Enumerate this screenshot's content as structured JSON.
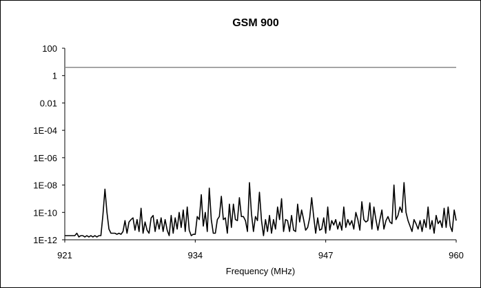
{
  "chart_data": {
    "type": "line",
    "title": "GSM 900",
    "xlabel": "Frequency (MHz)",
    "ylabel": "",
    "y_scale": "log",
    "xlim": [
      921,
      960
    ],
    "ylim": [
      1e-12,
      100
    ],
    "x_ticks": [
      921,
      934,
      947,
      960
    ],
    "x_tick_labels": [
      "921",
      "934",
      "947",
      "960"
    ],
    "y_ticks": [
      1e-12,
      1e-10,
      1e-08,
      1e-06,
      0.0001,
      0.01,
      1,
      100
    ],
    "y_tick_labels": [
      "1E-12",
      "1E-10",
      "1E-08",
      "1E-06",
      "1E-04",
      "0.01",
      "1",
      "100"
    ],
    "grid": false,
    "legend": "none",
    "series": [
      {
        "color": "#888888",
        "x": [
          921,
          960
        ],
        "y": [
          4,
          4
        ]
      },
      {
        "color": "#000000",
        "x": [
          921.0,
          921.2,
          921.4,
          921.6,
          921.8,
          922.0,
          922.2,
          922.4,
          922.6,
          922.8,
          923.0,
          923.2,
          923.4,
          923.6,
          923.8,
          924.0,
          924.2,
          924.4,
          924.6,
          924.8,
          925.0,
          925.2,
          925.4,
          925.6,
          925.8,
          926.0,
          926.2,
          926.4,
          926.6,
          926.8,
          927.0,
          927.2,
          927.4,
          927.6,
          927.8,
          928.0,
          928.2,
          928.4,
          928.6,
          928.8,
          929.0,
          929.2,
          929.4,
          929.6,
          929.8,
          930.0,
          930.2,
          930.4,
          930.6,
          930.8,
          931.0,
          931.2,
          931.4,
          931.6,
          931.8,
          932.0,
          932.2,
          932.4,
          932.6,
          932.8,
          933.0,
          933.2,
          933.4,
          933.6,
          933.8,
          934.0,
          934.2,
          934.4,
          934.6,
          934.8,
          935.0,
          935.2,
          935.4,
          935.6,
          935.8,
          936.0,
          936.2,
          936.4,
          936.6,
          936.8,
          937.0,
          937.2,
          937.4,
          937.6,
          937.8,
          938.0,
          938.2,
          938.4,
          938.6,
          938.8,
          939.0,
          939.2,
          939.4,
          939.6,
          939.8,
          940.0,
          940.2,
          940.4,
          940.6,
          940.8,
          941.0,
          941.2,
          941.4,
          941.6,
          941.8,
          942.0,
          942.2,
          942.4,
          942.6,
          942.8,
          943.0,
          943.2,
          943.4,
          943.6,
          943.8,
          944.0,
          944.2,
          944.4,
          944.6,
          944.8,
          945.0,
          945.2,
          945.4,
          945.6,
          945.8,
          946.0,
          946.2,
          946.4,
          946.6,
          946.8,
          947.0,
          947.2,
          947.4,
          947.6,
          947.8,
          948.0,
          948.2,
          948.4,
          948.6,
          948.8,
          949.0,
          949.2,
          949.4,
          949.6,
          949.8,
          950.0,
          950.2,
          950.4,
          950.6,
          950.8,
          951.0,
          951.2,
          951.4,
          951.6,
          951.8,
          952.0,
          952.2,
          952.4,
          952.6,
          952.8,
          953.0,
          953.2,
          953.4,
          953.6,
          953.8,
          954.0,
          954.2,
          954.4,
          954.6,
          954.8,
          955.0,
          955.2,
          955.4,
          955.6,
          955.8,
          956.0,
          956.2,
          956.4,
          956.6,
          956.8,
          957.0,
          957.2,
          957.4,
          957.6,
          957.8,
          958.0,
          958.2,
          958.4,
          958.6,
          958.8,
          959.0,
          959.2,
          959.4,
          959.6,
          959.8,
          960.0
        ],
        "y": [
          2e-12,
          2e-12,
          2e-12,
          2e-12,
          2e-12,
          2e-12,
          3e-12,
          1.6e-12,
          2e-12,
          2e-12,
          1.6e-12,
          2e-12,
          1.6e-12,
          2e-12,
          1.6e-12,
          2e-12,
          1.6e-12,
          2e-12,
          2e-12,
          6e-11,
          5e-09,
          1e-10,
          6e-12,
          3e-12,
          3e-12,
          3e-12,
          2.5e-12,
          3e-12,
          2.5e-12,
          4e-12,
          2.5e-11,
          3e-12,
          2e-11,
          3e-11,
          4e-11,
          5e-12,
          3e-11,
          4e-12,
          2e-10,
          3e-12,
          2e-11,
          5e-12,
          3e-12,
          4e-11,
          6e-11,
          4e-12,
          3e-11,
          6e-12,
          4e-11,
          4e-12,
          3e-11,
          5e-12,
          2e-12,
          6e-11,
          3e-12,
          4e-11,
          6e-12,
          1e-10,
          8e-12,
          1.5e-10,
          4e-12,
          2.5e-10,
          5e-12,
          2e-12,
          2.5e-12,
          2.5e-12,
          5e-11,
          3e-11,
          2e-09,
          1e-11,
          1e-10,
          4e-12,
          6e-09,
          3e-11,
          3e-12,
          3e-12,
          3e-11,
          5e-11,
          1.5e-09,
          3e-11,
          4e-11,
          3e-12,
          4e-10,
          8e-12,
          4e-10,
          3e-11,
          2.5e-11,
          1.2e-09,
          5e-11,
          5e-11,
          2.5e-11,
          4e-12,
          1.5e-08,
          8e-11,
          4e-12,
          5e-11,
          2.5e-11,
          3e-09,
          2.5e-11,
          2e-12,
          3e-11,
          4e-12,
          6e-11,
          3e-12,
          3e-11,
          6e-12,
          2.5e-10,
          3e-11,
          1e-09,
          4e-12,
          3e-11,
          2.5e-11,
          4e-12,
          6e-11,
          5e-12,
          4e-12,
          4e-10,
          2e-11,
          1.5e-10,
          3e-11,
          5e-12,
          8e-12,
          4e-11,
          1.2e-09,
          5e-11,
          3e-12,
          4e-11,
          5e-12,
          6e-12,
          4e-11,
          3e-12,
          2.5e-10,
          5e-12,
          2.5e-11,
          1.2e-11,
          3e-11,
          6e-12,
          2e-11,
          5e-12,
          2.5e-10,
          8e-12,
          3e-11,
          1.2e-11,
          2.5e-11,
          6e-12,
          1e-10,
          3e-11,
          5e-12,
          6e-10,
          3e-11,
          2e-11,
          2.5e-11,
          5e-10,
          6e-12,
          2.5e-10,
          3e-11,
          5e-12,
          3e-11,
          1.5e-10,
          6e-12,
          2.5e-11,
          5e-11,
          2e-11,
          1.5e-11,
          1e-08,
          3e-11,
          6e-11,
          2.5e-10,
          1e-10,
          1.5e-08,
          1e-10,
          2.5e-11,
          1e-11,
          4e-12,
          3e-11,
          1.5e-11,
          6e-12,
          2.5e-11,
          4e-12,
          3e-11,
          8e-12,
          2.5e-10,
          6e-12,
          2.5e-11,
          3e-12,
          6e-11,
          1.5e-11,
          2.5e-11,
          8e-12,
          2e-10,
          8e-12,
          2.5e-10,
          1e-11,
          4e-12,
          1.5e-10,
          2.5e-11
        ]
      }
    ]
  }
}
